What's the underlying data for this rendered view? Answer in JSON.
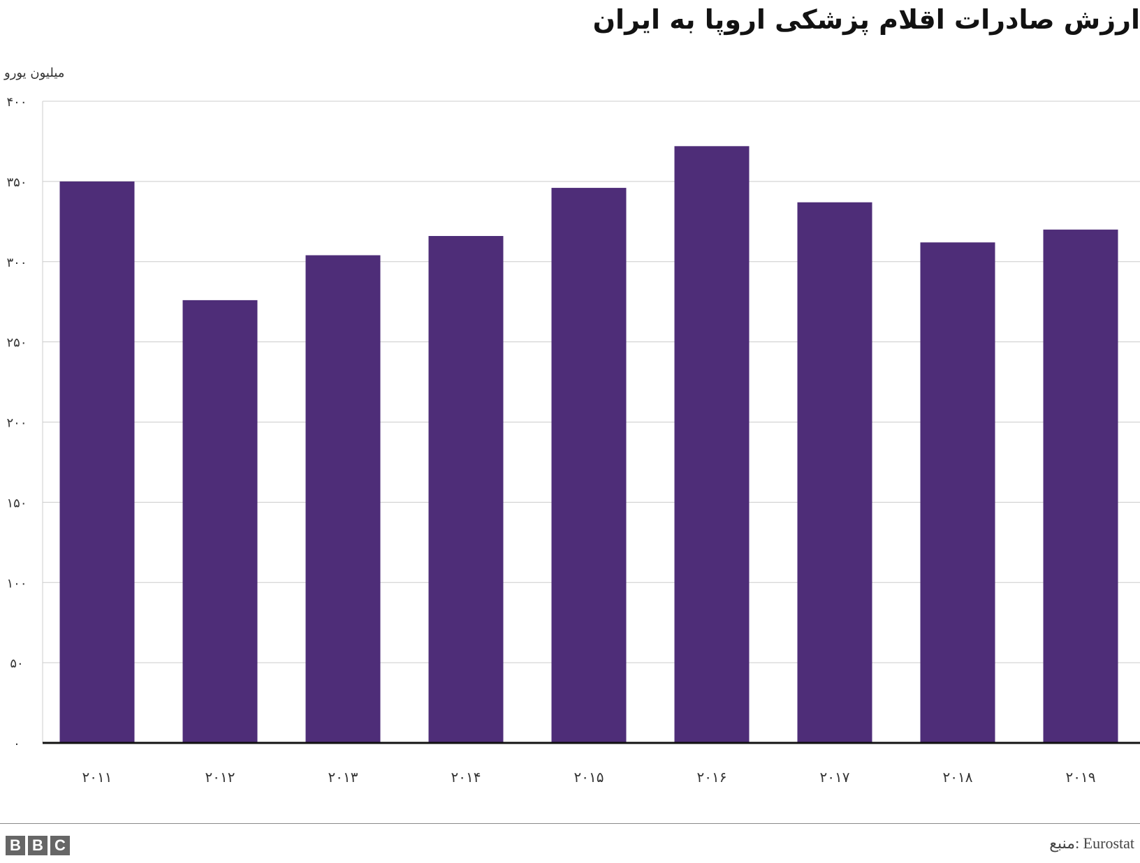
{
  "chart_data": {
    "type": "bar",
    "title": "ارزش صادرات اقلام پزشکی اروپا به ایران",
    "ylabel": "میلیون یورو",
    "xlabel": "",
    "categories": [
      "۲۰۱۱",
      "۲۰۱۲",
      "۲۰۱۳",
      "۲۰۱۴",
      "۲۰۱۵",
      "۲۰۱۶",
      "۲۰۱۷",
      "۲۰۱۸",
      "۲۰۱۹"
    ],
    "values": [
      350,
      276,
      304,
      316,
      346,
      372,
      337,
      312,
      320
    ],
    "ylim": [
      0,
      400
    ],
    "yticks": [
      0,
      50,
      100,
      150,
      200,
      250,
      300,
      350,
      400
    ],
    "ytick_labels": [
      "۰",
      "۵۰",
      "۱۰۰",
      "۱۵۰",
      "۲۰۰",
      "۲۵۰",
      "۳۰۰",
      "۳۵۰",
      "۴۰۰"
    ],
    "grid": true,
    "legend": "none",
    "bar_color": "#4e2d78"
  },
  "footer": {
    "logo_letters": [
      "B",
      "B",
      "C"
    ],
    "source": "منبع: Eurostat"
  }
}
